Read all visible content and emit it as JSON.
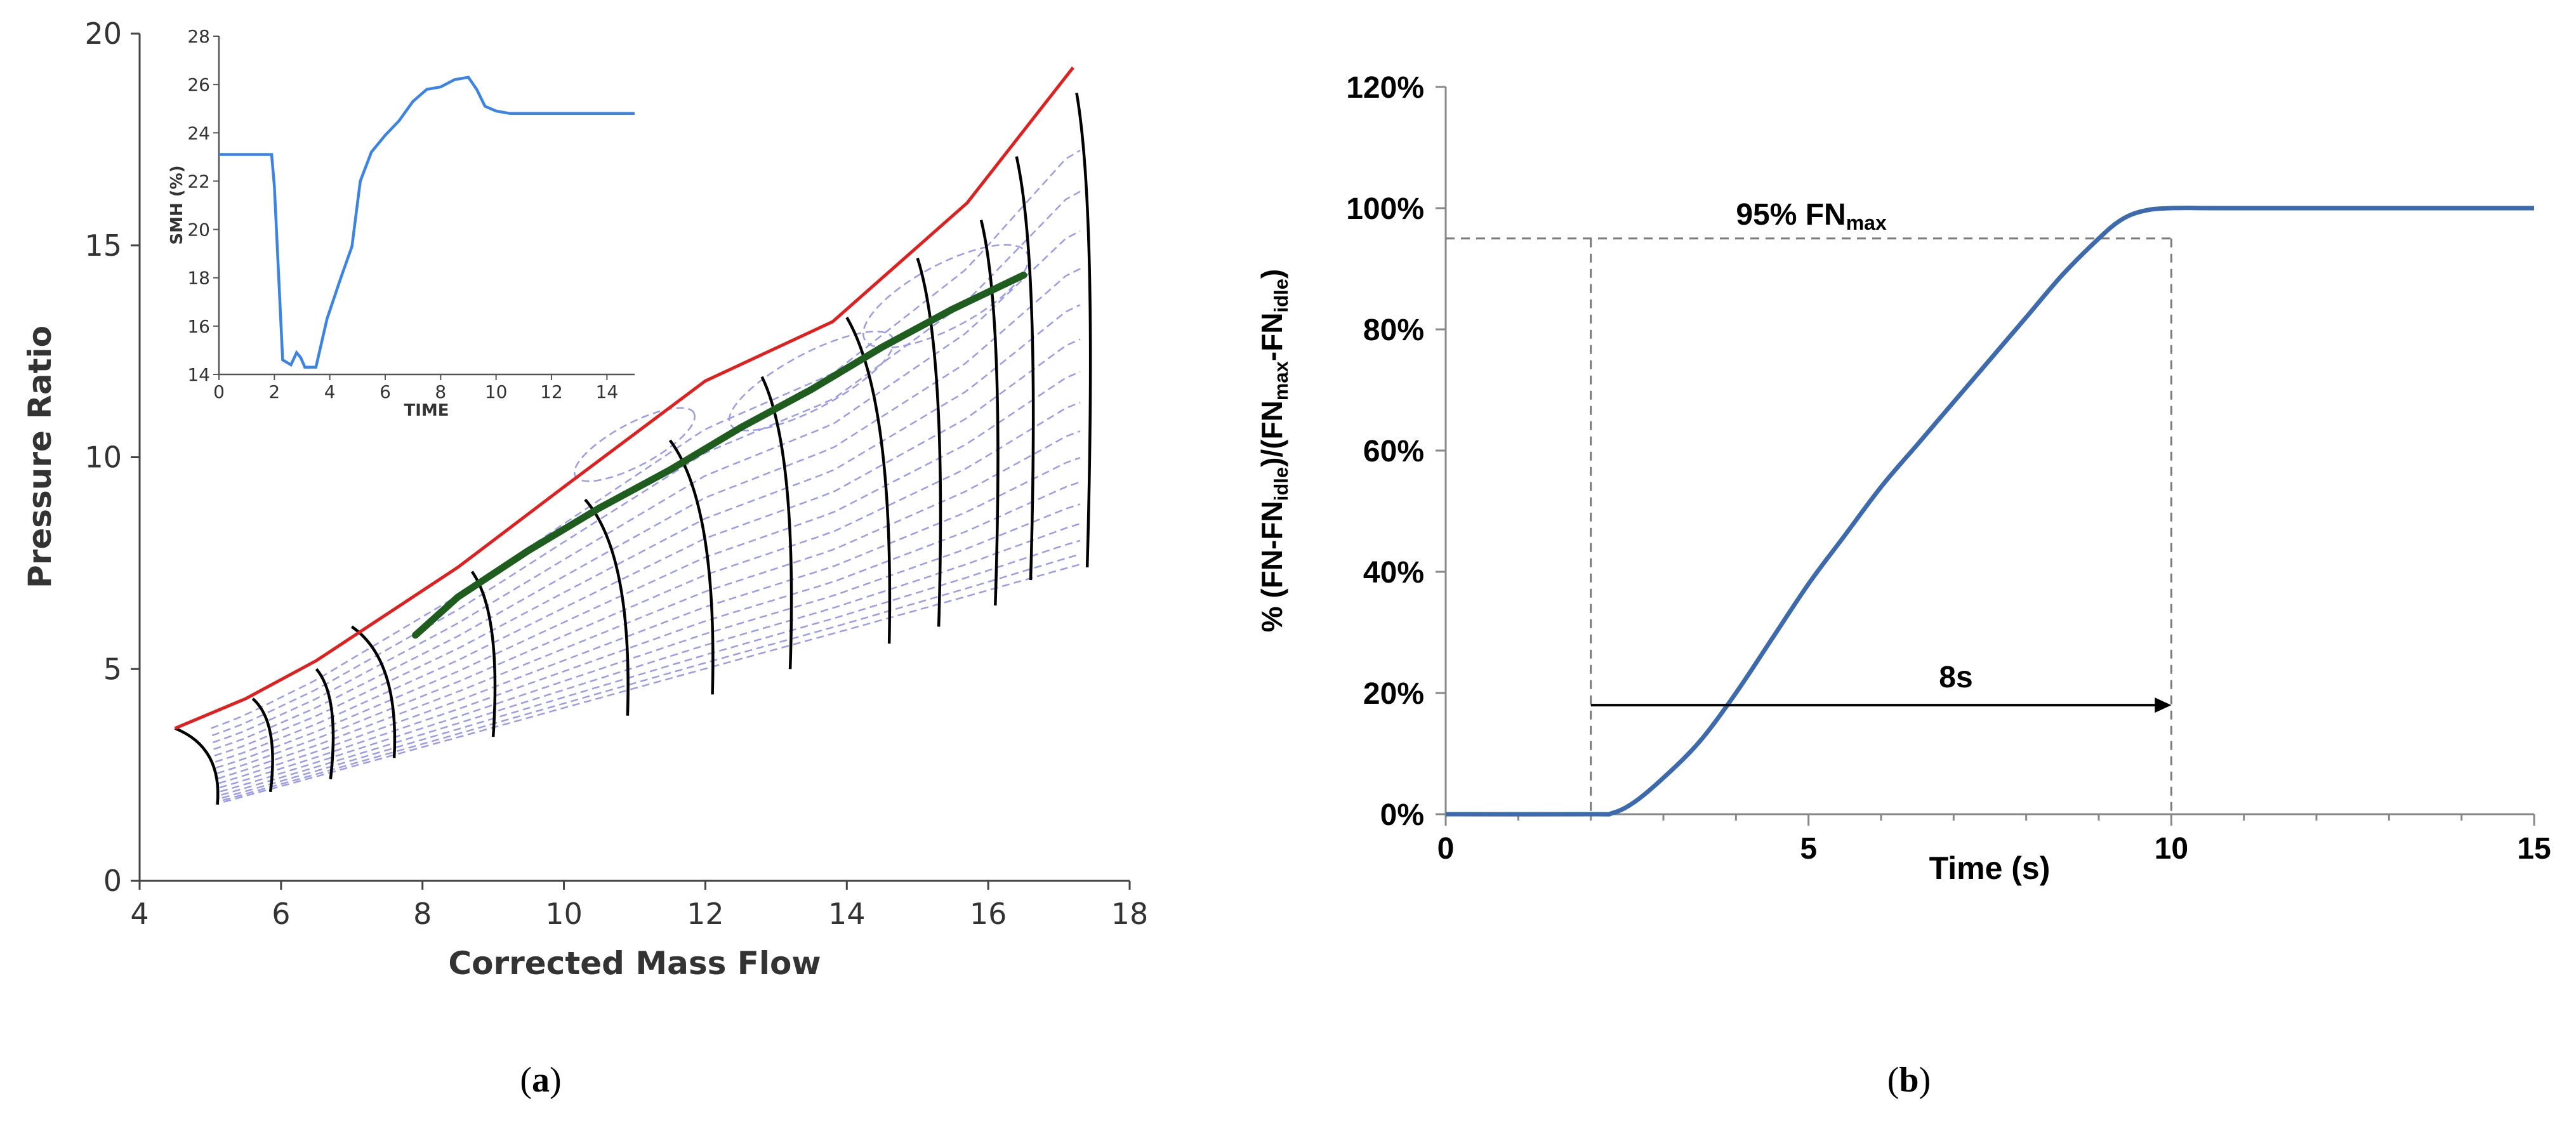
{
  "panels": {
    "a_caption": {
      "open": "(",
      "letter": "a",
      "close": ")"
    },
    "b_caption": {
      "open": "(",
      "letter": "b",
      "close": ")"
    }
  },
  "colors": {
    "surge_line": "#e0201f",
    "speed_lines": "#000000",
    "operating_line": "#1f5d1f",
    "efficiency_contours": "#9b9bea",
    "inset_line": "#3b84e6",
    "response_line": "#3d6aad",
    "guide_lines": "#7a7a7a"
  },
  "chart_data": [
    {
      "id": "a",
      "type": "line",
      "title": "",
      "xlabel": "Corrected Mass Flow",
      "ylabel": "Pressure Ratio",
      "xlim": [
        4,
        18
      ],
      "ylim": [
        0,
        20
      ],
      "xticks": [
        "4",
        "6",
        "8",
        "10",
        "12",
        "14",
        "16",
        "18"
      ],
      "yticks": [
        "0",
        "5",
        "10",
        "15",
        "20"
      ],
      "grid": false,
      "legend": "none",
      "series": [
        {
          "role": "surge",
          "x": [
            4.5,
            5.5,
            6.5,
            7.5,
            8.5,
            10,
            12,
            13.8,
            15.7,
            17.2
          ],
          "y": [
            3.6,
            4.3,
            5.2,
            6.3,
            7.4,
            9.3,
            11.8,
            13.2,
            16.0,
            19.2
          ]
        },
        {
          "role": "operating",
          "x": [
            7.9,
            8.5,
            9.5,
            10.5,
            11.5,
            12.5,
            13.5,
            14.5,
            15.5,
            16.5
          ],
          "y": [
            5.8,
            6.7,
            7.8,
            8.8,
            9.7,
            10.7,
            11.6,
            12.6,
            13.5,
            14.3
          ]
        },
        {
          "role": "choke",
          "x": [
            5.1,
            17.4
          ],
          "y": [
            1.8,
            7.4
          ]
        }
      ],
      "speed_lines": [
        {
          "top": [
            4.5,
            3.6
          ],
          "bottom": [
            5.1,
            1.8
          ]
        },
        {
          "top": [
            5.6,
            4.3
          ],
          "bottom": [
            5.85,
            2.1
          ]
        },
        {
          "top": [
            6.5,
            5.0
          ],
          "bottom": [
            6.7,
            2.4
          ]
        },
        {
          "top": [
            7.0,
            6.0
          ],
          "bottom": [
            7.6,
            2.9
          ]
        },
        {
          "top": [
            8.7,
            7.3
          ],
          "bottom": [
            9.0,
            3.4
          ]
        },
        {
          "top": [
            10.3,
            9.0
          ],
          "bottom": [
            10.9,
            3.9
          ]
        },
        {
          "top": [
            11.5,
            10.4
          ],
          "bottom": [
            12.1,
            4.4
          ]
        },
        {
          "top": [
            12.8,
            11.9
          ],
          "bottom": [
            13.2,
            5.0
          ]
        },
        {
          "top": [
            14.0,
            13.3
          ],
          "bottom": [
            14.6,
            5.6
          ]
        },
        {
          "top": [
            15.0,
            14.7
          ],
          "bottom": [
            15.3,
            6.0
          ]
        },
        {
          "top": [
            15.9,
            15.6
          ],
          "bottom": [
            16.1,
            6.5
          ]
        },
        {
          "top": [
            16.4,
            17.1
          ],
          "bottom": [
            16.6,
            7.1
          ]
        },
        {
          "top": [
            17.25,
            18.6
          ],
          "bottom": [
            17.4,
            7.4
          ]
        }
      ],
      "inset": {
        "type": "line",
        "xlabel": "TIME",
        "ylabel": "SMH (%)",
        "xlim": [
          0,
          15
        ],
        "ylim": [
          14,
          28
        ],
        "xticks": [
          "0",
          "2",
          "4",
          "6",
          "8",
          "10",
          "12",
          "14"
        ],
        "yticks": [
          "14",
          "16",
          "18",
          "20",
          "22",
          "24",
          "26",
          "28"
        ],
        "x": [
          0,
          1.9,
          2.0,
          2.3,
          2.6,
          2.8,
          2.95,
          3.1,
          3.5,
          3.9,
          4.4,
          4.8,
          5.1,
          5.5,
          6.0,
          6.5,
          7.0,
          7.5,
          8.0,
          8.5,
          9.0,
          9.3,
          9.6,
          10.0,
          10.5,
          11.0,
          12.0,
          15.0
        ],
        "y": [
          23.1,
          23.1,
          21.8,
          14.6,
          14.4,
          14.9,
          14.7,
          14.3,
          14.3,
          16.3,
          18.0,
          19.3,
          22.0,
          23.2,
          23.9,
          24.5,
          25.3,
          25.8,
          25.9,
          26.2,
          26.3,
          25.8,
          25.1,
          24.9,
          24.8,
          24.8,
          24.8,
          24.8
        ]
      }
    },
    {
      "id": "b",
      "type": "line",
      "title": "",
      "xlabel": "Time (s)",
      "ylabel": {
        "open": "% (FN-FN",
        "sub1": "idle",
        "mid1": ")/(FN",
        "sub2": "max",
        "mid2": "-FN",
        "sub3": "idle",
        "close": ")"
      },
      "xlim": [
        0,
        15
      ],
      "ylim": [
        0,
        1.2
      ],
      "xticks": [
        "0",
        "5",
        "10",
        "15"
      ],
      "yticks": [
        "0%",
        "20%",
        "40%",
        "60%",
        "80%",
        "100%",
        "120%"
      ],
      "grid": false,
      "legend": "none",
      "x": [
        0,
        2.0,
        2.3,
        2.6,
        3.0,
        3.5,
        4.0,
        4.5,
        5.0,
        5.5,
        6.0,
        6.5,
        7.0,
        7.5,
        8.0,
        8.5,
        9.0,
        9.3,
        9.6,
        10.0,
        11.0,
        15.0
      ],
      "y": [
        0,
        0,
        0.002,
        0.02,
        0.06,
        0.12,
        0.2,
        0.29,
        0.38,
        0.46,
        0.54,
        0.61,
        0.68,
        0.75,
        0.82,
        0.89,
        0.95,
        0.98,
        0.995,
        1.0,
        1.0,
        1.0
      ],
      "annotations": {
        "threshold": {
          "value": 0.95,
          "label_main": "95% FN",
          "label_sub": "max"
        },
        "span": {
          "x0": 2,
          "x1": 10,
          "label": "8s"
        }
      }
    }
  ]
}
